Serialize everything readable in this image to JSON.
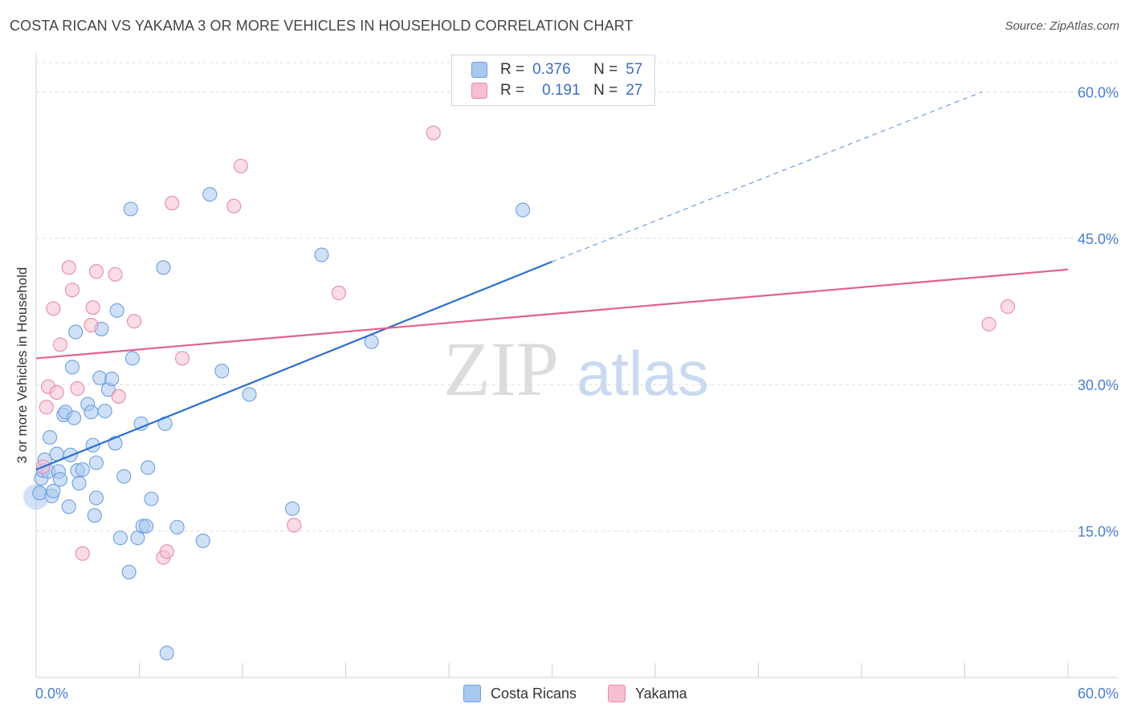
{
  "header": {
    "title": "COSTA RICAN VS YAKAMA 3 OR MORE VEHICLES IN HOUSEHOLD CORRELATION CHART",
    "source": "Source: ZipAtlas.com"
  },
  "legend": {
    "series": [
      {
        "r_label": "R =",
        "r_value": "0.376",
        "n_label": "N =",
        "n_value": "57"
      },
      {
        "r_label": "R =",
        "r_value": "0.191",
        "n_label": "N =",
        "n_value": "27"
      }
    ]
  },
  "bottom_legend": [
    "Costa Ricans",
    "Yakama"
  ],
  "watermark": {
    "zip": "ZIP",
    "atlas": "atlas"
  },
  "colors": {
    "blue_fill": "#a9c8f0",
    "blue_stroke": "#6d9fe0",
    "blue_line": "#2a6fd1",
    "pink_fill": "#f6bfcf",
    "pink_stroke": "#e98aa8",
    "pink_line": "#e0628e",
    "tick_text": "#4a7fd0",
    "grid": "#dedede"
  },
  "chart_data": {
    "type": "scatter",
    "title": "COSTA RICAN VS YAKAMA 3 OR MORE VEHICLES IN HOUSEHOLD CORRELATION CHART",
    "xlabel": "",
    "ylabel": "3 or more Vehicles in Household",
    "xlim": [
      0,
      60
    ],
    "ylim": [
      0,
      63
    ],
    "x_tick_labels": [
      "0.0%",
      "60.0%"
    ],
    "y_ticks": [
      15,
      30,
      45,
      60
    ],
    "y_tick_labels": [
      "15.0%",
      "30.0%",
      "45.0%",
      "60.0%"
    ],
    "grid": true,
    "legend_placement": "top-center",
    "series": [
      {
        "name": "Costa Ricans",
        "points": [
          [
            0.2,
            18.9
          ],
          [
            0.3,
            20.4
          ],
          [
            0.4,
            21.2
          ],
          [
            0.5,
            22.3
          ],
          [
            0.7,
            21.1
          ],
          [
            0.8,
            24.6
          ],
          [
            0.9,
            18.6
          ],
          [
            1.0,
            19.1
          ],
          [
            1.2,
            22.9
          ],
          [
            1.3,
            21.1
          ],
          [
            1.6,
            26.9
          ],
          [
            1.7,
            27.2
          ],
          [
            1.9,
            17.5
          ],
          [
            2.0,
            22.8
          ],
          [
            2.1,
            31.8
          ],
          [
            2.2,
            26.6
          ],
          [
            2.4,
            21.2
          ],
          [
            2.5,
            19.9
          ],
          [
            2.7,
            21.3
          ],
          [
            3.0,
            28.0
          ],
          [
            3.2,
            27.2
          ],
          [
            3.3,
            23.8
          ],
          [
            3.4,
            16.6
          ],
          [
            3.5,
            18.4
          ],
          [
            3.5,
            22.0
          ],
          [
            3.7,
            30.7
          ],
          [
            3.8,
            35.7
          ],
          [
            4.0,
            27.3
          ],
          [
            4.2,
            29.5
          ],
          [
            4.4,
            30.6
          ],
          [
            4.6,
            24.0
          ],
          [
            4.7,
            37.6
          ],
          [
            4.9,
            14.3
          ],
          [
            5.1,
            20.6
          ],
          [
            5.4,
            10.8
          ],
          [
            5.5,
            48.0
          ],
          [
            5.6,
            32.7
          ],
          [
            5.9,
            14.3
          ],
          [
            6.1,
            26.0
          ],
          [
            6.2,
            15.5
          ],
          [
            6.4,
            15.5
          ],
          [
            6.5,
            21.5
          ],
          [
            6.7,
            18.3
          ],
          [
            7.4,
            42.0
          ],
          [
            7.5,
            26.0
          ],
          [
            7.6,
            2.5
          ],
          [
            8.2,
            15.4
          ],
          [
            9.7,
            14.0
          ],
          [
            10.1,
            49.5
          ],
          [
            10.8,
            31.4
          ],
          [
            12.4,
            29.0
          ],
          [
            14.9,
            17.3
          ],
          [
            16.6,
            43.3
          ],
          [
            19.5,
            34.4
          ],
          [
            28.3,
            47.9
          ],
          [
            2.3,
            35.4
          ],
          [
            1.4,
            20.3
          ]
        ]
      },
      {
        "name": "Yakama",
        "points": [
          [
            0.4,
            21.6
          ],
          [
            0.6,
            27.7
          ],
          [
            0.7,
            29.8
          ],
          [
            1.0,
            37.8
          ],
          [
            1.2,
            29.2
          ],
          [
            1.4,
            34.1
          ],
          [
            1.9,
            42.0
          ],
          [
            2.1,
            39.7
          ],
          [
            2.4,
            29.6
          ],
          [
            2.7,
            12.7
          ],
          [
            3.2,
            36.1
          ],
          [
            3.3,
            37.9
          ],
          [
            3.5,
            41.6
          ],
          [
            4.6,
            41.3
          ],
          [
            4.8,
            28.8
          ],
          [
            5.7,
            36.5
          ],
          [
            7.4,
            12.3
          ],
          [
            7.6,
            12.9
          ],
          [
            7.9,
            48.6
          ],
          [
            8.5,
            32.7
          ],
          [
            11.5,
            48.3
          ],
          [
            11.9,
            52.4
          ],
          [
            15.0,
            15.6
          ],
          [
            17.6,
            39.4
          ],
          [
            23.1,
            55.8
          ],
          [
            55.4,
            36.2
          ],
          [
            56.5,
            38.0
          ]
        ]
      }
    ],
    "trendlines": [
      {
        "series": "Costa Ricans",
        "solid_from": [
          0,
          21.3
        ],
        "solid_to": [
          30,
          42.6
        ],
        "dashed_to": [
          55,
          60.0
        ]
      },
      {
        "series": "Yakama",
        "from": [
          0,
          32.7
        ],
        "to": [
          60,
          41.8
        ]
      }
    ]
  }
}
